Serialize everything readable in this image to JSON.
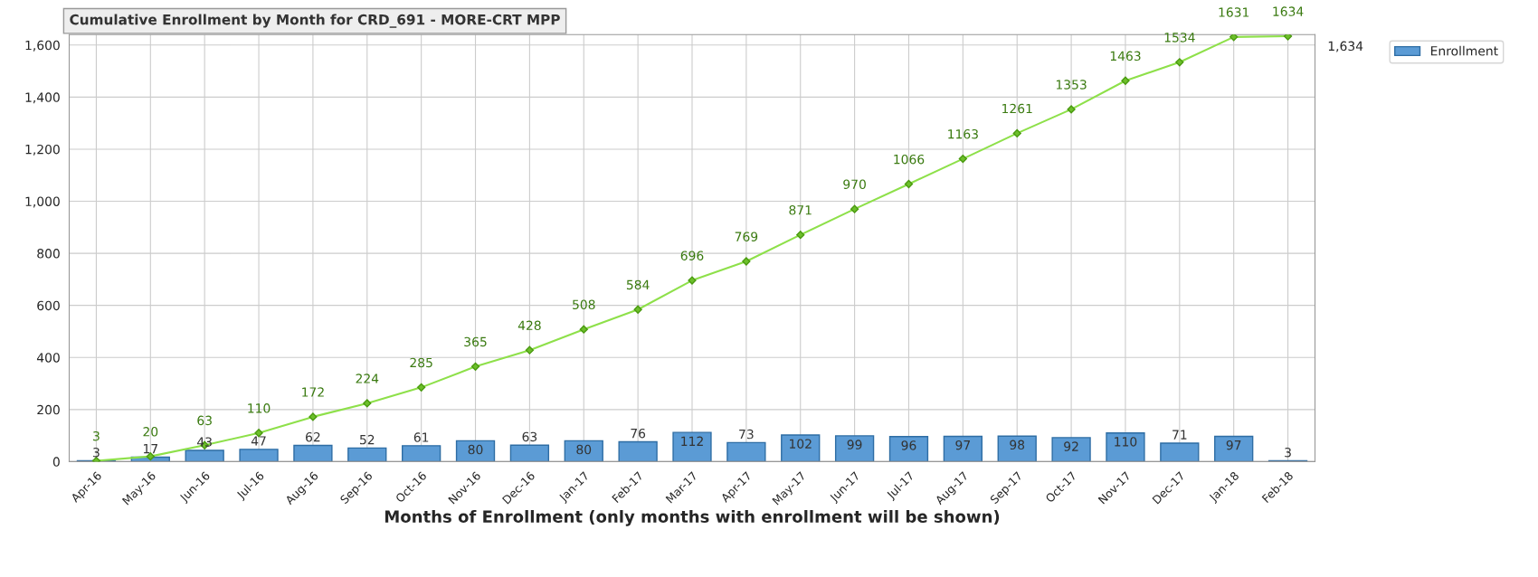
{
  "chart_data": {
    "type": "bar",
    "title": "Cumulative Enrollment by Month for CRD_691 - MORE-CRT MPP",
    "xlabel": "Months of Enrollment (only months with enrollment will be shown)",
    "categories": [
      "Apr-16",
      "May-16",
      "Jun-16",
      "Jul-16",
      "Aug-16",
      "Sep-16",
      "Oct-16",
      "Nov-16",
      "Dec-16",
      "Jan-17",
      "Feb-17",
      "Mar-17",
      "Apr-17",
      "May-17",
      "Jun-17",
      "Jul-17",
      "Aug-17",
      "Sep-17",
      "Oct-17",
      "Nov-17",
      "Dec-17",
      "Jan-18",
      "Feb-18"
    ],
    "series": [
      {
        "name": "Enrollment",
        "color": "#5b9bd5",
        "values": [
          3,
          17,
          43,
          47,
          62,
          52,
          61,
          80,
          63,
          80,
          76,
          112,
          73,
          102,
          99,
          96,
          97,
          98,
          92,
          110,
          71,
          97,
          3
        ]
      },
      {
        "type": "line",
        "color": "#8ee04a",
        "marker": "diamond",
        "values": [
          3,
          20,
          63,
          110,
          172,
          224,
          285,
          365,
          428,
          508,
          584,
          696,
          769,
          871,
          970,
          1066,
          1163,
          1261,
          1353,
          1463,
          1534,
          1631,
          1634
        ]
      }
    ],
    "ylim": [
      0,
      1640
    ],
    "yticks": [
      0,
      200,
      400,
      600,
      800,
      {
        "value": 1000,
        "label": "1,000"
      },
      {
        "value": 1200,
        "label": "1,200"
      },
      {
        "value": 1400,
        "label": "1,400"
      },
      {
        "value": 1600,
        "label": "1,600"
      }
    ],
    "grid": true,
    "legend": "top right",
    "data_labels": true,
    "annotations": [
      "1,634"
    ]
  }
}
